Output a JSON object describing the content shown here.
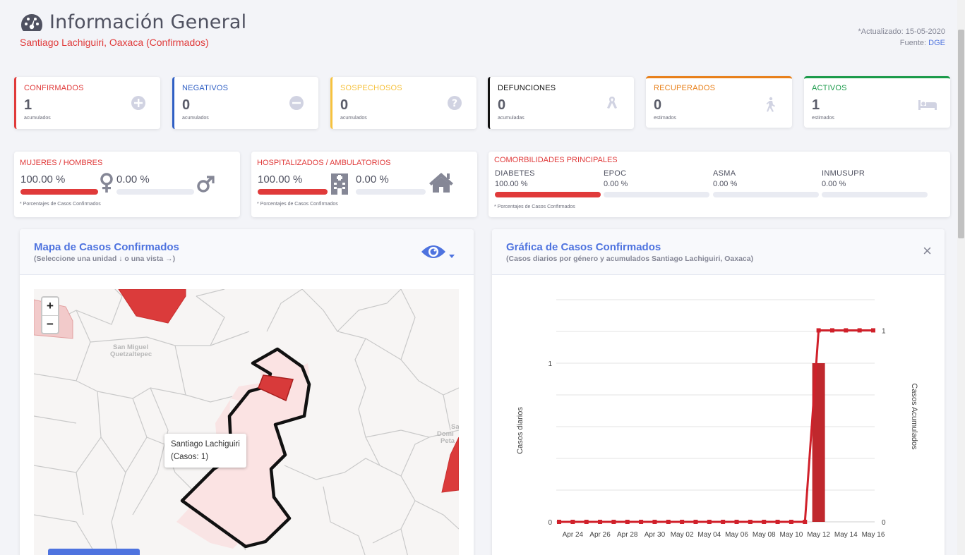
{
  "header": {
    "title": "Información General",
    "subtitle": "Santiago Lachiguiri, Oaxaca (Confirmados)",
    "updated": "*Actualizado: 15-05-2020",
    "source_label": "Fuente:",
    "source_link": "DGE"
  },
  "stats": [
    {
      "label": "CONFIRMADOS",
      "value": "1",
      "sub": "acumulados",
      "color": "#e03a3a",
      "icon": "plus-circle-icon"
    },
    {
      "label": "NEGATIVOS",
      "value": "0",
      "sub": "acumulados",
      "color": "#2f5fc4",
      "icon": "minus-circle-icon"
    },
    {
      "label": "SOSPECHOSOS",
      "value": "0",
      "sub": "acumulados",
      "color": "#f6c23e",
      "icon": "question-circle-icon"
    },
    {
      "label": "DEFUNCIONES",
      "value": "0",
      "sub": "acumuladas",
      "color": "#111111",
      "icon": "ribbon-icon"
    },
    {
      "label": "RECUPERADOS",
      "value": "0",
      "sub": "estimados",
      "color": "#e8801a",
      "icon": "walking-icon"
    },
    {
      "label": "ACTIVOS",
      "value": "1",
      "sub": "estimados",
      "color": "#1a9a4a",
      "icon": "bed-icon"
    }
  ],
  "gender": {
    "label": "MUJERES / HOMBRES",
    "women_pct": "100.00 %",
    "men_pct": "0.00 %",
    "women_fraction": 1.0,
    "men_fraction": 0.0,
    "note": "* Porcentajes  de Casos Confirmados"
  },
  "hospital": {
    "label": "HOSPITALIZADOS / AMBULATORIOS",
    "hosp_pct": "100.00 %",
    "amb_pct": "0.00 %",
    "hosp_fraction": 1.0,
    "amb_fraction": 0.0,
    "note": "* Porcentajes  de Casos Confirmados"
  },
  "comorbidities": {
    "label": "COMORBILIDADES PRINCIPALES",
    "items": [
      {
        "name": "DIABETES",
        "pct": "100.00 %",
        "fraction": 1.0
      },
      {
        "name": "EPOC",
        "pct": "0.00 %",
        "fraction": 0.0
      },
      {
        "name": "ASMA",
        "pct": "0.00 %",
        "fraction": 0.0
      },
      {
        "name": "INMUSUPR",
        "pct": "0.00 %",
        "fraction": 0.0
      }
    ],
    "note": "* Porcentajes  de Casos Confirmados"
  },
  "map_panel": {
    "title": "Mapa de Casos Confirmados",
    "subtitle": "(Seleccione una unidad ↓ o una vista →)",
    "zoom_in": "+",
    "zoom_out": "−",
    "tooltip_name": "Santiago Lachiguiri",
    "tooltip_cases": "(Casos: 1)",
    "place_labels": [
      "San Miguel",
      "Quetzaltepec",
      "Sant",
      "Domi",
      "Peta"
    ]
  },
  "chart_panel": {
    "title": "Gráfica de Casos Confirmados",
    "subtitle": "(Casos diarios por género y acumulados Santiago Lachiguiri, Oaxaca)",
    "close": "×"
  },
  "chart_data": {
    "type": "bar",
    "x": [
      "Apr 23",
      "Apr 24",
      "Apr 25",
      "Apr 26",
      "Apr 27",
      "Apr 28",
      "Apr 29",
      "Apr 30",
      "May 01",
      "May 02",
      "May 03",
      "May 04",
      "May 05",
      "May 06",
      "May 07",
      "May 08",
      "May 09",
      "May 10",
      "May 11",
      "May 12",
      "May 13",
      "May 14",
      "May 15",
      "May 16"
    ],
    "tick_labels": [
      "Apr 24",
      "Apr 26",
      "Apr 28",
      "Apr 30",
      "May 02",
      "May 04",
      "May 06",
      "May 08",
      "May 10",
      "May 12",
      "May 14",
      "May 16"
    ],
    "series": [
      {
        "type": "bar",
        "axis": "left",
        "values": [
          0,
          0,
          0,
          0,
          0,
          0,
          0,
          0,
          0,
          0,
          0,
          0,
          0,
          0,
          0,
          0,
          0,
          0,
          0,
          1,
          0,
          0,
          0,
          0
        ],
        "color": "#c0282d"
      },
      {
        "type": "line",
        "axis": "right",
        "values": [
          0,
          0,
          0,
          0,
          0,
          0,
          0,
          0,
          0,
          0,
          0,
          0,
          0,
          0,
          0,
          0,
          0,
          0,
          0,
          1,
          1,
          1,
          1,
          1
        ],
        "color": "#d0202a"
      }
    ],
    "ylabel": "Casos diarios",
    "y2label": "Casos Acumulados",
    "ylim": [
      0,
      1.4
    ],
    "y2lim": [
      0,
      1.16
    ],
    "yticks": [
      "0",
      "1"
    ],
    "y2ticks": [
      "0",
      "1"
    ],
    "grid": true
  }
}
